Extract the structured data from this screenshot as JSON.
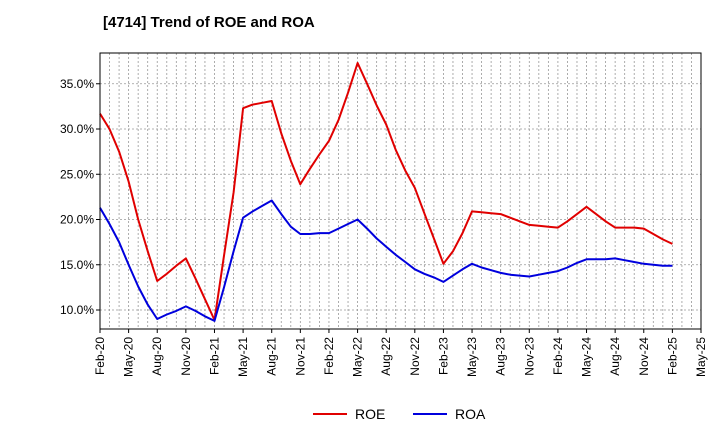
{
  "title": "[4714]  Trend of ROE and ROA",
  "chart_data": {
    "type": "line",
    "title": "[4714]  Trend of ROE and ROA",
    "xlabel": "",
    "ylabel": "",
    "x": [
      "Feb-20",
      "Mar-20",
      "Apr-20",
      "May-20",
      "Jun-20",
      "Jul-20",
      "Aug-20",
      "Sep-20",
      "Oct-20",
      "Nov-20",
      "Dec-20",
      "Jan-21",
      "Feb-21",
      "Mar-21",
      "Apr-21",
      "May-21",
      "Jun-21",
      "Jul-21",
      "Aug-21",
      "Sep-21",
      "Oct-21",
      "Nov-21",
      "Dec-21",
      "Jan-22",
      "Feb-22",
      "Mar-22",
      "Apr-22",
      "May-22",
      "Jun-22",
      "Jul-22",
      "Aug-22",
      "Sep-22",
      "Oct-22",
      "Nov-22",
      "Dec-22",
      "Jan-23",
      "Feb-23",
      "Mar-23",
      "Apr-23",
      "May-23",
      "Jun-23",
      "Jul-23",
      "Aug-23",
      "Sep-23",
      "Oct-23",
      "Nov-23",
      "Dec-23",
      "Jan-24",
      "Feb-24",
      "Mar-24",
      "Apr-24",
      "May-24",
      "Jun-24",
      "Jul-24",
      "Aug-24",
      "Sep-24",
      "Oct-24",
      "Nov-24",
      "Dec-24",
      "Jan-25",
      "Feb-25"
    ],
    "x_tick_labels": [
      "Feb-20",
      "May-20",
      "Aug-20",
      "Nov-20",
      "Feb-21",
      "May-21",
      "Aug-21",
      "Nov-21",
      "Feb-22",
      "May-22",
      "Aug-22",
      "Nov-22",
      "Feb-23",
      "May-23",
      "Aug-23",
      "Nov-23",
      "Feb-24",
      "May-24",
      "Aug-24",
      "Nov-24",
      "Feb-25",
      "May-25"
    ],
    "x_tick_step_months": 3,
    "x_range_months": [
      0,
      63
    ],
    "y_ticks": [
      10.0,
      15.0,
      20.0,
      25.0,
      30.0,
      35.0
    ],
    "y_tick_labels": [
      "10.0%",
      "15.0%",
      "20.0%",
      "25.0%",
      "30.0%",
      "35.0%"
    ],
    "ylim": [
      7.9,
      38.4
    ],
    "grid": true,
    "legend_position": "bottom-center",
    "series": [
      {
        "name": "ROE",
        "color": "#e00000",
        "points": [
          [
            0,
            31.7
          ],
          [
            1,
            30.0
          ],
          [
            2,
            27.5
          ],
          [
            3,
            24.2
          ],
          [
            4,
            20.0
          ],
          [
            5,
            16.5
          ],
          [
            6,
            13.2
          ],
          [
            7,
            14.0
          ],
          [
            8,
            14.9
          ],
          [
            9,
            15.7
          ],
          [
            10,
            13.5
          ],
          [
            11,
            11.2
          ],
          [
            12,
            8.9
          ],
          [
            13,
            16.0
          ],
          [
            14,
            23.0
          ],
          [
            15,
            32.3
          ],
          [
            16,
            32.7
          ],
          [
            17,
            32.9
          ],
          [
            18,
            33.1
          ],
          [
            19,
            29.5
          ],
          [
            20,
            26.5
          ],
          [
            21,
            23.9
          ],
          [
            22,
            25.6
          ],
          [
            23,
            27.2
          ],
          [
            24,
            28.7
          ],
          [
            25,
            31.0
          ],
          [
            26,
            34.0
          ],
          [
            27,
            37.3
          ],
          [
            28,
            35.0
          ],
          [
            29,
            32.6
          ],
          [
            30,
            30.5
          ],
          [
            31,
            27.7
          ],
          [
            32,
            25.4
          ],
          [
            33,
            23.5
          ],
          [
            34,
            20.7
          ],
          [
            35,
            17.9
          ],
          [
            36,
            15.1
          ],
          [
            37,
            16.5
          ],
          [
            38,
            18.5
          ],
          [
            39,
            20.9
          ],
          [
            40,
            20.8
          ],
          [
            41,
            20.7
          ],
          [
            42,
            20.6
          ],
          [
            43,
            20.2
          ],
          [
            44,
            19.8
          ],
          [
            45,
            19.4
          ],
          [
            46,
            19.3
          ],
          [
            47,
            19.2
          ],
          [
            48,
            19.1
          ],
          [
            49,
            19.8
          ],
          [
            50,
            20.6
          ],
          [
            51,
            21.4
          ],
          [
            52,
            20.6
          ],
          [
            53,
            19.8
          ],
          [
            54,
            19.1
          ],
          [
            55,
            19.1
          ],
          [
            56,
            19.1
          ],
          [
            57,
            19.0
          ],
          [
            58,
            18.4
          ],
          [
            59,
            17.8
          ],
          [
            60,
            17.3
          ]
        ]
      },
      {
        "name": "ROA",
        "color": "#0000dd",
        "points": [
          [
            0,
            21.3
          ],
          [
            1,
            19.5
          ],
          [
            2,
            17.5
          ],
          [
            3,
            15.0
          ],
          [
            4,
            12.6
          ],
          [
            5,
            10.6
          ],
          [
            6,
            9.0
          ],
          [
            7,
            9.5
          ],
          [
            8,
            9.9
          ],
          [
            9,
            10.4
          ],
          [
            10,
            9.9
          ],
          [
            11,
            9.3
          ],
          [
            12,
            8.8
          ],
          [
            13,
            12.5
          ],
          [
            14,
            16.5
          ],
          [
            15,
            20.2
          ],
          [
            16,
            20.9
          ],
          [
            17,
            21.5
          ],
          [
            18,
            22.1
          ],
          [
            19,
            20.6
          ],
          [
            20,
            19.2
          ],
          [
            21,
            18.4
          ],
          [
            22,
            18.4
          ],
          [
            23,
            18.5
          ],
          [
            24,
            18.5
          ],
          [
            25,
            19.0
          ],
          [
            26,
            19.5
          ],
          [
            27,
            20.0
          ],
          [
            28,
            19.0
          ],
          [
            29,
            17.9
          ],
          [
            30,
            17.0
          ],
          [
            31,
            16.1
          ],
          [
            32,
            15.3
          ],
          [
            33,
            14.5
          ],
          [
            34,
            14.0
          ],
          [
            35,
            13.6
          ],
          [
            36,
            13.1
          ],
          [
            37,
            13.8
          ],
          [
            38,
            14.5
          ],
          [
            39,
            15.1
          ],
          [
            40,
            14.7
          ],
          [
            41,
            14.4
          ],
          [
            42,
            14.1
          ],
          [
            43,
            13.9
          ],
          [
            44,
            13.8
          ],
          [
            45,
            13.7
          ],
          [
            46,
            13.9
          ],
          [
            47,
            14.1
          ],
          [
            48,
            14.3
          ],
          [
            49,
            14.7
          ],
          [
            50,
            15.2
          ],
          [
            51,
            15.6
          ],
          [
            52,
            15.6
          ],
          [
            53,
            15.6
          ],
          [
            54,
            15.7
          ],
          [
            55,
            15.5
          ],
          [
            56,
            15.3
          ],
          [
            57,
            15.1
          ],
          [
            58,
            15.0
          ],
          [
            59,
            14.9
          ],
          [
            60,
            14.9
          ]
        ]
      }
    ]
  }
}
